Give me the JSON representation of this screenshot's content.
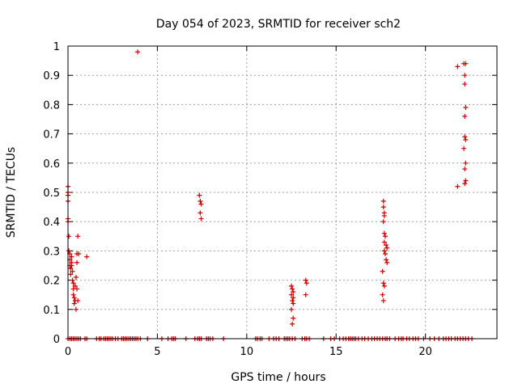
{
  "chart_data": {
    "type": "scatter",
    "title": "Day 054 of 2023, SRMTID for receiver sch2",
    "xlabel": "GPS time / hours",
    "ylabel": "SRMTID / TECUs",
    "xlim": [
      0,
      24
    ],
    "ylim": [
      0,
      1
    ],
    "grid": true,
    "marker": "+",
    "marker_color": "#cc0000",
    "x_ticks": [
      0,
      5,
      10,
      15,
      20
    ],
    "x_tick_labels": [
      "0",
      "5",
      "10",
      "15",
      "20"
    ],
    "y_ticks": [
      0,
      0.1,
      0.2,
      0.3,
      0.4,
      0.5,
      0.6,
      0.7,
      0.8,
      0.9,
      1
    ],
    "y_tick_labels": [
      "0",
      "0.1",
      "0.2",
      "0.3",
      "0.4",
      "0.5",
      "0.6",
      "0.7",
      "0.8",
      "0.9",
      "1"
    ],
    "series": [
      {
        "name": "SRMTID",
        "points": [
          [
            0.0,
            0.52
          ],
          [
            0.0,
            0.5
          ],
          [
            0.0,
            0.49
          ],
          [
            0.0,
            0.47
          ],
          [
            0.0,
            0.41
          ],
          [
            0.0,
            0.4
          ],
          [
            0.05,
            0.35
          ],
          [
            0.05,
            0.3
          ],
          [
            0.1,
            0.29
          ],
          [
            0.1,
            0.27
          ],
          [
            0.1,
            0.25
          ],
          [
            0.15,
            0.24
          ],
          [
            0.15,
            0.22
          ],
          [
            0.2,
            0.28
          ],
          [
            0.2,
            0.26
          ],
          [
            0.2,
            0.25
          ],
          [
            0.25,
            0.23
          ],
          [
            0.25,
            0.2
          ],
          [
            0.3,
            0.19
          ],
          [
            0.3,
            0.17
          ],
          [
            0.3,
            0.15
          ],
          [
            0.35,
            0.14
          ],
          [
            0.35,
            0.12
          ],
          [
            0.4,
            0.18
          ],
          [
            0.4,
            0.13
          ],
          [
            0.45,
            0.1
          ],
          [
            0.45,
            0.21
          ],
          [
            0.5,
            0.26
          ],
          [
            0.5,
            0.17
          ],
          [
            0.5,
            0.29
          ],
          [
            0.55,
            0.35
          ],
          [
            0.55,
            0.13
          ],
          [
            0.6,
            0.29
          ],
          [
            1.05,
            0.28
          ],
          [
            3.9,
            0.98
          ],
          [
            7.35,
            0.49
          ],
          [
            7.4,
            0.47
          ],
          [
            7.45,
            0.46
          ],
          [
            7.4,
            0.43
          ],
          [
            7.45,
            0.41
          ],
          [
            12.5,
            0.18
          ],
          [
            12.55,
            0.17
          ],
          [
            12.6,
            0.16
          ],
          [
            12.5,
            0.15
          ],
          [
            12.55,
            0.13
          ],
          [
            12.6,
            0.12
          ],
          [
            12.5,
            0.1
          ],
          [
            12.6,
            0.07
          ],
          [
            12.55,
            0.05
          ],
          [
            12.6,
            0.14
          ],
          [
            13.3,
            0.2
          ],
          [
            13.35,
            0.19
          ],
          [
            13.3,
            0.15
          ],
          [
            17.65,
            0.47
          ],
          [
            17.65,
            0.45
          ],
          [
            17.7,
            0.43
          ],
          [
            17.7,
            0.42
          ],
          [
            17.65,
            0.4
          ],
          [
            17.7,
            0.36
          ],
          [
            17.75,
            0.35
          ],
          [
            17.7,
            0.33
          ],
          [
            17.8,
            0.32
          ],
          [
            17.85,
            0.31
          ],
          [
            17.7,
            0.3
          ],
          [
            17.75,
            0.29
          ],
          [
            17.8,
            0.27
          ],
          [
            17.85,
            0.26
          ],
          [
            17.6,
            0.23
          ],
          [
            17.65,
            0.19
          ],
          [
            17.7,
            0.18
          ],
          [
            17.6,
            0.15
          ],
          [
            17.65,
            0.13
          ],
          [
            21.8,
            0.93
          ],
          [
            22.15,
            0.94
          ],
          [
            22.25,
            0.94
          ],
          [
            22.2,
            0.9
          ],
          [
            22.2,
            0.87
          ],
          [
            22.25,
            0.79
          ],
          [
            22.2,
            0.76
          ],
          [
            22.2,
            0.69
          ],
          [
            22.25,
            0.68
          ],
          [
            22.15,
            0.65
          ],
          [
            22.25,
            0.6
          ],
          [
            22.2,
            0.58
          ],
          [
            22.25,
            0.54
          ],
          [
            22.2,
            0.53
          ],
          [
            21.8,
            0.52
          ],
          [
            0.0,
            0.0
          ],
          [
            0.1,
            0.0
          ],
          [
            0.2,
            0.0
          ],
          [
            0.3,
            0.0
          ],
          [
            0.4,
            0.0
          ],
          [
            0.5,
            0.0
          ],
          [
            0.6,
            0.0
          ],
          [
            0.7,
            0.0
          ],
          [
            0.95,
            0.0
          ],
          [
            1.05,
            0.0
          ],
          [
            1.6,
            0.0
          ],
          [
            1.75,
            0.0
          ],
          [
            1.85,
            0.0
          ],
          [
            2.0,
            0.0
          ],
          [
            2.1,
            0.0
          ],
          [
            2.2,
            0.0
          ],
          [
            2.3,
            0.0
          ],
          [
            2.4,
            0.0
          ],
          [
            2.5,
            0.0
          ],
          [
            2.65,
            0.0
          ],
          [
            2.8,
            0.0
          ],
          [
            3.0,
            0.0
          ],
          [
            3.1,
            0.0
          ],
          [
            3.2,
            0.0
          ],
          [
            3.3,
            0.0
          ],
          [
            3.4,
            0.0
          ],
          [
            3.5,
            0.0
          ],
          [
            3.6,
            0.0
          ],
          [
            3.7,
            0.0
          ],
          [
            3.8,
            0.0
          ],
          [
            3.9,
            0.0
          ],
          [
            4.05,
            0.0
          ],
          [
            4.45,
            0.0
          ],
          [
            5.25,
            0.0
          ],
          [
            5.6,
            0.0
          ],
          [
            5.8,
            0.0
          ],
          [
            5.9,
            0.0
          ],
          [
            6.0,
            0.0
          ],
          [
            6.6,
            0.0
          ],
          [
            7.1,
            0.0
          ],
          [
            7.25,
            0.0
          ],
          [
            7.35,
            0.0
          ],
          [
            7.45,
            0.0
          ],
          [
            7.75,
            0.0
          ],
          [
            7.85,
            0.0
          ],
          [
            7.95,
            0.0
          ],
          [
            8.1,
            0.0
          ],
          [
            8.7,
            0.0
          ],
          [
            10.5,
            0.0
          ],
          [
            10.6,
            0.0
          ],
          [
            10.75,
            0.0
          ],
          [
            10.85,
            0.0
          ],
          [
            11.25,
            0.0
          ],
          [
            11.5,
            0.0
          ],
          [
            11.65,
            0.0
          ],
          [
            11.8,
            0.0
          ],
          [
            12.1,
            0.0
          ],
          [
            12.2,
            0.0
          ],
          [
            12.3,
            0.0
          ],
          [
            12.4,
            0.0
          ],
          [
            12.55,
            0.0
          ],
          [
            12.7,
            0.0
          ],
          [
            13.1,
            0.0
          ],
          [
            13.25,
            0.0
          ],
          [
            13.35,
            0.0
          ],
          [
            13.5,
            0.0
          ],
          [
            14.3,
            0.0
          ],
          [
            14.7,
            0.0
          ],
          [
            14.9,
            0.0
          ],
          [
            15.2,
            0.0
          ],
          [
            15.4,
            0.0
          ],
          [
            15.55,
            0.0
          ],
          [
            15.7,
            0.0
          ],
          [
            15.8,
            0.0
          ],
          [
            15.9,
            0.0
          ],
          [
            16.0,
            0.0
          ],
          [
            16.1,
            0.0
          ],
          [
            16.25,
            0.0
          ],
          [
            16.45,
            0.0
          ],
          [
            16.6,
            0.0
          ],
          [
            16.8,
            0.0
          ],
          [
            17.0,
            0.0
          ],
          [
            17.15,
            0.0
          ],
          [
            17.3,
            0.0
          ],
          [
            17.45,
            0.0
          ],
          [
            17.6,
            0.0
          ],
          [
            17.75,
            0.0
          ],
          [
            17.85,
            0.0
          ],
          [
            18.0,
            0.0
          ],
          [
            18.3,
            0.0
          ],
          [
            18.5,
            0.0
          ],
          [
            18.65,
            0.0
          ],
          [
            18.75,
            0.0
          ],
          [
            18.95,
            0.0
          ],
          [
            19.1,
            0.0
          ],
          [
            19.3,
            0.0
          ],
          [
            19.45,
            0.0
          ],
          [
            19.6,
            0.0
          ],
          [
            19.9,
            0.0
          ],
          [
            20.25,
            0.0
          ],
          [
            20.5,
            0.0
          ],
          [
            20.75,
            0.0
          ],
          [
            21.0,
            0.0
          ],
          [
            21.15,
            0.0
          ],
          [
            21.3,
            0.0
          ],
          [
            21.45,
            0.0
          ],
          [
            21.65,
            0.0
          ],
          [
            21.8,
            0.0
          ],
          [
            21.95,
            0.0
          ],
          [
            22.1,
            0.0
          ],
          [
            22.25,
            0.0
          ],
          [
            22.4,
            0.0
          ],
          [
            22.6,
            0.0
          ]
        ]
      }
    ]
  }
}
